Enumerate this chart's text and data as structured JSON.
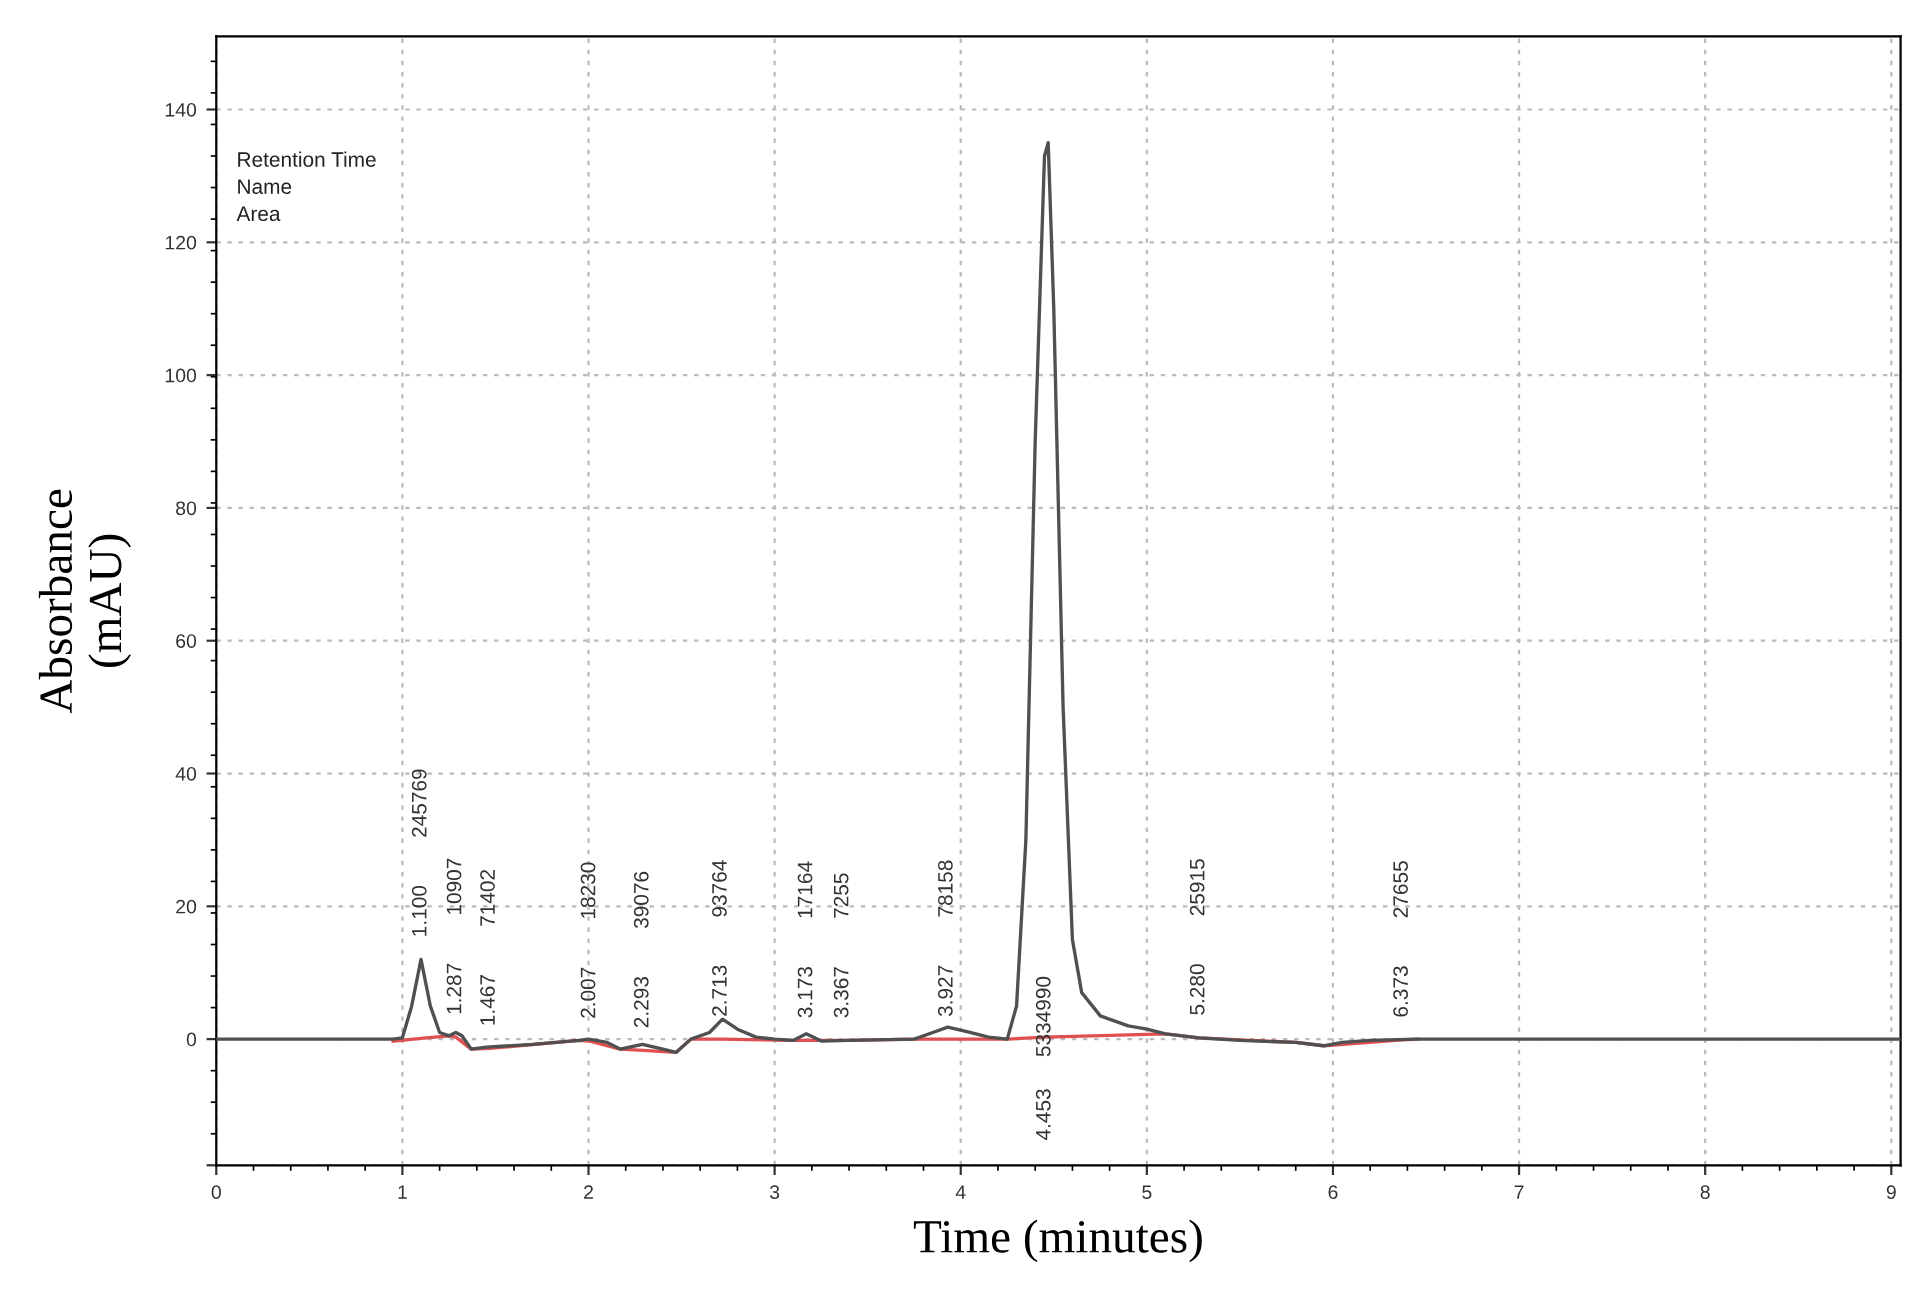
{
  "chart_data": {
    "type": "line",
    "xlabel": "Time (minutes)",
    "ylabel": "Absorbance\n(mAU)",
    "xlim": [
      0,
      9.05
    ],
    "ylim": [
      -19,
      151
    ],
    "xticks": [
      0,
      1,
      2,
      3,
      4,
      5,
      6,
      7,
      8,
      9
    ],
    "yticks": [
      {
        "value": -19,
        "label": null
      },
      0,
      20,
      40,
      60,
      80,
      100,
      120,
      140
    ],
    "grid": true,
    "marker": "none",
    "line_style": "solid",
    "series": [
      {
        "color": "#505050",
        "x": [
          0,
          0.95,
          1.0,
          1.05,
          1.1,
          1.15,
          1.2,
          1.25,
          1.287,
          1.32,
          1.37,
          1.45,
          1.7,
          1.95,
          2.0,
          2.1,
          2.17,
          2.29,
          2.4,
          2.47,
          2.55,
          2.65,
          2.72,
          2.8,
          2.9,
          3.0,
          3.1,
          3.17,
          3.25,
          3.4,
          3.75,
          3.85,
          3.93,
          4.05,
          4.15,
          4.25,
          4.3,
          4.35,
          4.4,
          4.45,
          4.47,
          4.5,
          4.55,
          4.6,
          4.65,
          4.75,
          4.9,
          5.0,
          5.1,
          5.28,
          5.5,
          5.8,
          5.95,
          6.05,
          6.2,
          6.45,
          9.05
        ],
        "values": [
          0,
          0,
          0.2,
          5,
          12,
          5,
          1,
          0.5,
          1,
          0.5,
          -1.5,
          -1.2,
          -0.8,
          -0.2,
          0,
          -0.5,
          -1.5,
          -0.8,
          -1.5,
          -2,
          0,
          1,
          3,
          1.5,
          0.3,
          0,
          -0.2,
          0.8,
          -0.3,
          -0.2,
          0,
          1,
          1.8,
          1,
          0.3,
          0,
          5,
          30,
          90,
          133,
          135,
          110,
          50,
          15,
          7,
          3.5,
          2,
          1.5,
          0.8,
          0.2,
          -0.2,
          -0.5,
          -1,
          -0.5,
          -0.2,
          0,
          0
        ]
      },
      {
        "color": "#e05050",
        "x": [
          0.95,
          1.1,
          1.25,
          1.287,
          1.37,
          1.467,
          1.95,
          2.007,
          2.17,
          2.293,
          2.47,
          2.55,
          2.713,
          3.1,
          3.173,
          3.367,
          3.4,
          3.75,
          3.927,
          4.25,
          4.453,
          5.1,
          5.28,
          5.8,
          5.95,
          6.373,
          6.45
        ],
        "values": [
          -0.3,
          0.1,
          0.5,
          0.3,
          -1.5,
          -1.4,
          -0.2,
          -0.3,
          -1.5,
          -1.7,
          -2,
          0,
          0,
          -0.2,
          -0.2,
          -0.2,
          -0.2,
          0,
          0,
          0,
          0.3,
          0.8,
          0.2,
          -0.5,
          -1,
          -0.1,
          0
        ]
      }
    ],
    "annotations": [
      "Retention Time",
      "Name",
      "Area",
      {
        "text": "1.100",
        "x": 1.1,
        "y": 12
      },
      "245769",
      {
        "text": "1.287",
        "x": 1.287,
        "y": 0.3
      },
      "10907",
      {
        "text": "1.467",
        "x": 1.467,
        "y": -1.4
      },
      "71402",
      {
        "text": "2.007",
        "x": 2.007,
        "y": -0.3
      },
      "18230",
      {
        "text": "2.293",
        "x": 2.293,
        "y": -1.7
      },
      "39076",
      {
        "text": "2.713",
        "x": 2.713,
        "y": 0
      },
      "93764",
      {
        "text": "3.173",
        "x": 3.173,
        "y": -0.2
      },
      "17164",
      {
        "text": "3.367",
        "x": 3.367,
        "y": -0.2
      },
      "7255",
      {
        "text": "3.927",
        "x": 3.927,
        "y": 0
      },
      "78158",
      {
        "text": "5334990",
        "x": 4.453,
        "y": 0.3
      },
      "4.453",
      {
        "text": "5.280",
        "x": 5.28,
        "y": 0.2
      },
      "25915",
      {
        "text": "6.373",
        "x": 6.373,
        "y": -0.1
      },
      "27655"
    ]
  }
}
